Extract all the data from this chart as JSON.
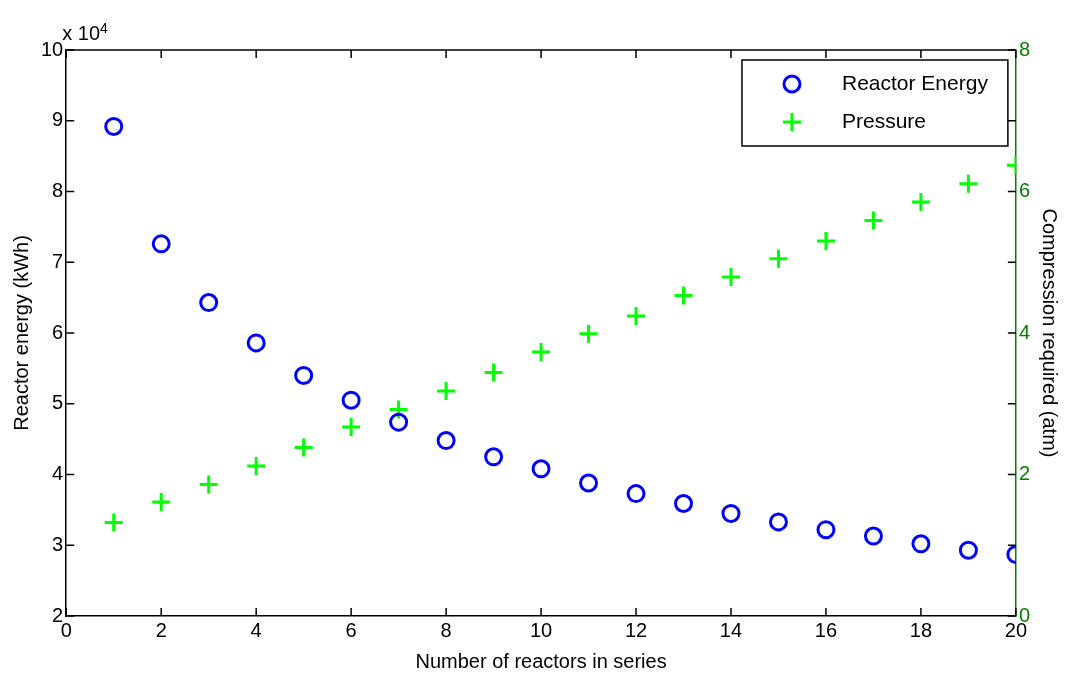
{
  "chart_data": {
    "type": "scatter",
    "xlabel": "Number of reactors in series",
    "ylabel": "Reactor energy (kWh)",
    "y2label": "Compression required (atm)",
    "annotations": [
      "x 10$^{4}$"
    ],
    "x": [
      1,
      2,
      3,
      4,
      5,
      6,
      7,
      8,
      9,
      10,
      11,
      12,
      13,
      14,
      15,
      16,
      17,
      18,
      19,
      20
    ],
    "series": [
      {
        "name": "Reactor Energy",
        "color": "#0000ff",
        "marker": "circle",
        "values": [
          8.92,
          7.26,
          6.43,
          5.86,
          5.4,
          5.05,
          4.74,
          4.48,
          4.25,
          4.08,
          3.88,
          3.73,
          3.59,
          3.45,
          3.33,
          3.22,
          3.13,
          3.02,
          2.93,
          2.87
        ]
      },
      {
        "name": "Pressure",
        "color": "#00ff00",
        "marker": "cross",
        "axis": "y2",
        "values": [
          1.32,
          1.61,
          1.86,
          2.12,
          2.38,
          2.67,
          2.92,
          3.18,
          3.44,
          3.73,
          3.99,
          4.24,
          4.53,
          4.79,
          5.05,
          5.3,
          5.59,
          5.85,
          6.11,
          6.37
        ]
      }
    ],
    "xlim": [
      0,
      20
    ],
    "xticks": [
      0,
      2,
      4,
      6,
      8,
      10,
      12,
      14,
      16,
      18,
      20
    ],
    "ylim": [
      2,
      10
    ],
    "yticks": [
      2,
      3,
      4,
      5,
      6,
      7,
      8,
      9,
      10
    ],
    "y2lim": [
      0,
      8
    ],
    "y2ticks": [
      0,
      {
        "value": 1,
        "label": null
      },
      2,
      {
        "value": 3,
        "label": null
      },
      4,
      {
        "value": 5,
        "label": null
      },
      6,
      {
        "value": 7,
        "label": null
      },
      8
    ],
    "grid": false,
    "legend": "top right"
  }
}
